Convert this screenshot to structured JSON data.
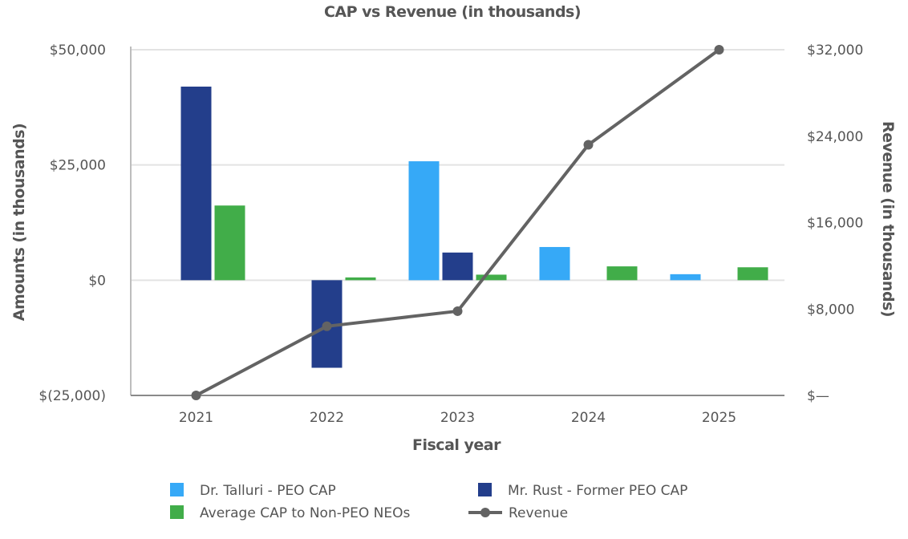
{
  "chart_data": {
    "type": "bar",
    "title": "CAP vs Revenue (in thousands)",
    "xlabel": "Fiscal year",
    "ylabel": "Amounts (in thousands)",
    "y2label": "Revenue (in thousands)",
    "categories": [
      "2021",
      "2022",
      "2023",
      "2024",
      "2025"
    ],
    "ylim": [
      -25000,
      50000
    ],
    "y2lim": [
      0,
      32000
    ],
    "yticks": [
      -25000,
      0,
      25000,
      50000
    ],
    "ytick_labels": [
      "$(25,000)",
      "$0",
      "$25,000",
      "$50,000"
    ],
    "y2ticks": [
      0,
      8000,
      16000,
      24000,
      32000
    ],
    "y2tick_labels": [
      "$—",
      "$8,000",
      "$16,000",
      "$24,000",
      "$32,000"
    ],
    "grid": true,
    "legend_position": "bottom",
    "series": [
      {
        "name": "Dr. Talluri - PEO CAP",
        "type": "bar",
        "color": "#36A9F7",
        "values": [
          null,
          null,
          25800,
          7200,
          1300
        ]
      },
      {
        "name": "Mr. Rust - Former PEO CAP",
        "type": "bar",
        "color": "#233E8B",
        "values": [
          42000,
          -19000,
          6000,
          null,
          null
        ]
      },
      {
        "name": "Average CAP to Non-PEO NEOs",
        "type": "bar",
        "color": "#41AD49",
        "values": [
          16200,
          600,
          1200,
          3000,
          2800
        ]
      },
      {
        "name": "Revenue",
        "type": "line",
        "axis": "right",
        "color": "#636363",
        "values": [
          0,
          6400,
          7800,
          23200,
          32000
        ]
      }
    ]
  }
}
